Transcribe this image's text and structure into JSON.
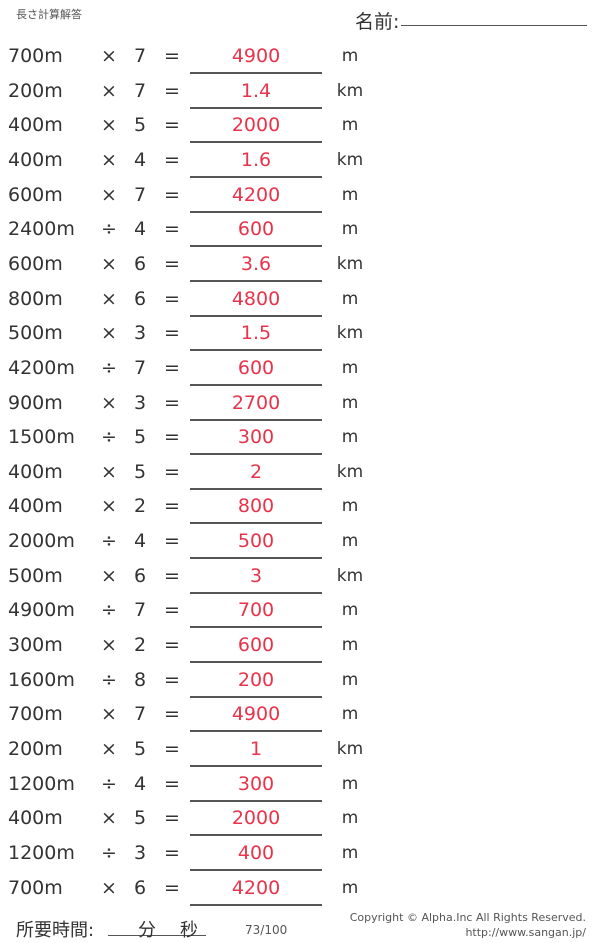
{
  "header": {
    "title": "長さ計算解答",
    "name_label": "名前:"
  },
  "answer_color": "#e8334a",
  "problems": [
    {
      "a": "700m",
      "op": "×",
      "b": "7",
      "answer": "4900",
      "unit": "m"
    },
    {
      "a": "200m",
      "op": "×",
      "b": "7",
      "answer": "1.4",
      "unit": "km"
    },
    {
      "a": "400m",
      "op": "×",
      "b": "5",
      "answer": "2000",
      "unit": "m"
    },
    {
      "a": "400m",
      "op": "×",
      "b": "4",
      "answer": "1.6",
      "unit": "km"
    },
    {
      "a": "600m",
      "op": "×",
      "b": "7",
      "answer": "4200",
      "unit": "m"
    },
    {
      "a": "2400m",
      "op": "÷",
      "b": "4",
      "answer": "600",
      "unit": "m"
    },
    {
      "a": "600m",
      "op": "×",
      "b": "6",
      "answer": "3.6",
      "unit": "km"
    },
    {
      "a": "800m",
      "op": "×",
      "b": "6",
      "answer": "4800",
      "unit": "m"
    },
    {
      "a": "500m",
      "op": "×",
      "b": "3",
      "answer": "1.5",
      "unit": "km"
    },
    {
      "a": "4200m",
      "op": "÷",
      "b": "7",
      "answer": "600",
      "unit": "m"
    },
    {
      "a": "900m",
      "op": "×",
      "b": "3",
      "answer": "2700",
      "unit": "m"
    },
    {
      "a": "1500m",
      "op": "÷",
      "b": "5",
      "answer": "300",
      "unit": "m"
    },
    {
      "a": "400m",
      "op": "×",
      "b": "5",
      "answer": "2",
      "unit": "km"
    },
    {
      "a": "400m",
      "op": "×",
      "b": "2",
      "answer": "800",
      "unit": "m"
    },
    {
      "a": "2000m",
      "op": "÷",
      "b": "4",
      "answer": "500",
      "unit": "m"
    },
    {
      "a": "500m",
      "op": "×",
      "b": "6",
      "answer": "3",
      "unit": "km"
    },
    {
      "a": "4900m",
      "op": "÷",
      "b": "7",
      "answer": "700",
      "unit": "m"
    },
    {
      "a": "300m",
      "op": "×",
      "b": "2",
      "answer": "600",
      "unit": "m"
    },
    {
      "a": "1600m",
      "op": "÷",
      "b": "8",
      "answer": "200",
      "unit": "m"
    },
    {
      "a": "700m",
      "op": "×",
      "b": "7",
      "answer": "4900",
      "unit": "m"
    },
    {
      "a": "200m",
      "op": "×",
      "b": "5",
      "answer": "1",
      "unit": "km"
    },
    {
      "a": "1200m",
      "op": "÷",
      "b": "4",
      "answer": "300",
      "unit": "m"
    },
    {
      "a": "400m",
      "op": "×",
      "b": "5",
      "answer": "2000",
      "unit": "m"
    },
    {
      "a": "1200m",
      "op": "÷",
      "b": "3",
      "answer": "400",
      "unit": "m"
    },
    {
      "a": "700m",
      "op": "×",
      "b": "6",
      "answer": "4200",
      "unit": "m"
    }
  ],
  "equals": "=",
  "footer": {
    "time_label": "所要時間:",
    "minutes": "分",
    "seconds": "秒",
    "page": "73/100",
    "copyright": "Copyright © Alpha.Inc All Rights Reserved.",
    "url": "http://www.sangan.jp/"
  }
}
